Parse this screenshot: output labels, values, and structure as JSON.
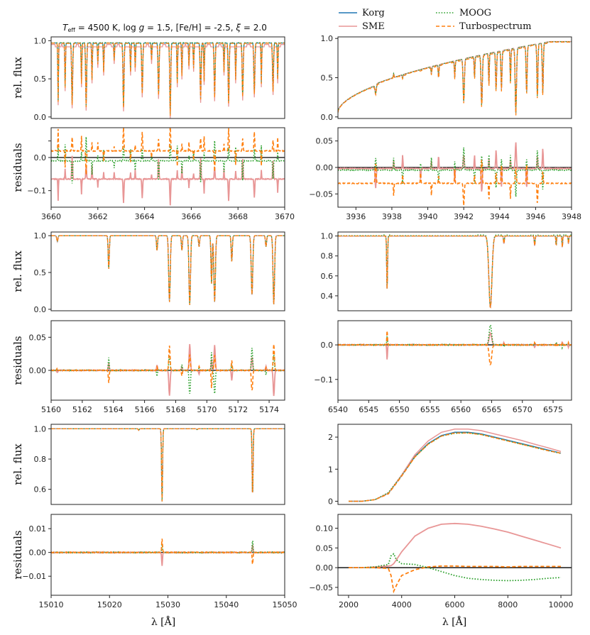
{
  "figure": {
    "title": "T_eff = 4500 K, log g = 1.5, [Fe/H] = -2.5, ξ = 2.0",
    "title_parts": {
      "teff": "= 4500 K, log ",
      "logg": " = 1.5, [Fe/H] = -2.5, ",
      "xi": " = 2.0"
    },
    "legend": [
      {
        "label": "Korg",
        "color": "#1f77b4",
        "style": "solid"
      },
      {
        "label": "SME",
        "color": "#e89696",
        "style": "solid"
      },
      {
        "label": "MOOG",
        "color": "#2ca02c",
        "style": "dotted"
      },
      {
        "label": "Turbospectrum",
        "color": "#ff7f0e",
        "style": "dashed"
      }
    ],
    "xlabel": "λ [Å]",
    "ylabel_flux": "rel. flux",
    "ylabel_resid": "residuals"
  },
  "chart_data": [
    {
      "type": "line",
      "id": "flux-3660",
      "xlim": [
        3660,
        3670
      ],
      "ylim": [
        -0.02,
        1.05
      ],
      "yticks": [
        0,
        0.5,
        1
      ],
      "ytick_labels": [
        "0.0",
        "0.5",
        "1.0"
      ],
      "ylabel": "rel. flux",
      "continuum": 0.97,
      "lines": [
        [
          3660.3,
          0.22,
          0.02
        ],
        [
          3660.6,
          0.4,
          0.02
        ],
        [
          3660.9,
          0.18,
          0.03
        ],
        [
          3661.3,
          0.45,
          0.02
        ],
        [
          3661.5,
          0.15,
          0.03
        ],
        [
          3661.75,
          0.5,
          0.02
        ],
        [
          3662.0,
          0.7,
          0.02
        ],
        [
          3662.25,
          0.6,
          0.02
        ],
        [
          3662.7,
          0.75,
          0.02
        ],
        [
          3663.1,
          0.14,
          0.03
        ],
        [
          3663.4,
          0.6,
          0.02
        ],
        [
          3663.6,
          0.65,
          0.02
        ],
        [
          3663.9,
          0.32,
          0.03
        ],
        [
          3664.3,
          0.75,
          0.02
        ],
        [
          3664.6,
          0.3,
          0.03
        ],
        [
          3665.1,
          0.04,
          0.03
        ],
        [
          3665.4,
          0.45,
          0.02
        ],
        [
          3665.6,
          0.55,
          0.02
        ],
        [
          3665.9,
          0.68,
          0.02
        ],
        [
          3666.1,
          0.65,
          0.02
        ],
        [
          3666.4,
          0.25,
          0.03
        ],
        [
          3666.55,
          0.48,
          0.02
        ],
        [
          3667.0,
          0.27,
          0.03
        ],
        [
          3667.4,
          0.6,
          0.02
        ],
        [
          3667.6,
          0.2,
          0.03
        ],
        [
          3667.9,
          0.5,
          0.02
        ],
        [
          3668.2,
          0.28,
          0.03
        ],
        [
          3668.7,
          0.32,
          0.03
        ],
        [
          3669.0,
          0.45,
          0.02
        ],
        [
          3669.5,
          0.35,
          0.03
        ],
        [
          3669.7,
          0.5,
          0.02
        ]
      ],
      "series": [
        {
          "name": "Korg",
          "offset": 0
        },
        {
          "name": "SME",
          "offset": -0.1
        },
        {
          "name": "MOOG",
          "offset": 0.01
        },
        {
          "name": "Turbospectrum",
          "offset": -0.01
        }
      ]
    },
    {
      "type": "line",
      "id": "resid-3660",
      "xlim": [
        3660,
        3670
      ],
      "ylim": [
        -0.15,
        0.09
      ],
      "yticks": [
        -0.1,
        0,
        0.05
      ],
      "ytick_labels": [
        "−0.1",
        "0.0",
        ""
      ],
      "ylabel": "residuals",
      "xticks": [
        3660,
        3662,
        3664,
        3666,
        3668,
        3670
      ],
      "series": [
        {
          "name": "SME",
          "baseline": -0.065,
          "min": -0.15
        },
        {
          "name": "MOOG",
          "baseline": -0.01
        },
        {
          "name": "Turbospectrum",
          "baseline": 0.02
        }
      ]
    },
    {
      "type": "line",
      "id": "flux-3935",
      "xlim": [
        3935,
        3948
      ],
      "ylim": [
        -0.02,
        1.02
      ],
      "yticks": [
        0,
        0.5,
        1
      ],
      "ytick_labels": [
        "0.0",
        "0.5",
        "1.0"
      ],
      "continuum_start": 0.08,
      "continuum_end": 0.96,
      "lines": [
        [
          3937.1,
          0.3,
          0.05
        ],
        [
          3938.1,
          0.55,
          0.03
        ],
        [
          3938.6,
          0.5,
          0.03
        ],
        [
          3939.6,
          0.6,
          0.03
        ],
        [
          3940.2,
          0.55,
          0.03
        ],
        [
          3940.6,
          0.5,
          0.03
        ],
        [
          3941.5,
          0.5,
          0.03
        ],
        [
          3942.0,
          0.2,
          0.05
        ],
        [
          3942.6,
          0.5,
          0.03
        ],
        [
          3943.0,
          0.15,
          0.05
        ],
        [
          3943.4,
          0.4,
          0.03
        ],
        [
          3943.8,
          0.35,
          0.04
        ],
        [
          3944.1,
          0.35,
          0.04
        ],
        [
          3944.6,
          0.45,
          0.03
        ],
        [
          3944.9,
          0.05,
          0.05
        ],
        [
          3945.5,
          0.3,
          0.04
        ],
        [
          3946.1,
          0.25,
          0.04
        ],
        [
          3946.4,
          0.3,
          0.04
        ]
      ],
      "series": [
        {
          "name": "Korg",
          "offset": 0
        },
        {
          "name": "SME",
          "offset": 0.005
        },
        {
          "name": "MOOG",
          "offset": 0
        },
        {
          "name": "Turbospectrum",
          "offset": -0.03
        }
      ]
    },
    {
      "type": "line",
      "id": "resid-3935",
      "xlim": [
        3935,
        3948
      ],
      "ylim": [
        -0.075,
        0.075
      ],
      "yticks": [
        -0.05,
        0,
        0.05
      ],
      "ytick_labels": [
        "−0.05",
        "0.00",
        "0.05"
      ],
      "xticks": [
        3936,
        3938,
        3940,
        3942,
        3944,
        3946,
        3948
      ],
      "series": [
        {
          "name": "SME",
          "baseline": -0.002,
          "max": 0.055
        },
        {
          "name": "MOOG",
          "baseline": -0.005
        },
        {
          "name": "Turbospectrum",
          "baseline": -0.03
        }
      ]
    },
    {
      "type": "line",
      "id": "flux-5160",
      "xlim": [
        5160,
        5175
      ],
      "ylim": [
        -0.02,
        1.05
      ],
      "yticks": [
        0,
        0.5,
        1
      ],
      "ytick_labels": [
        "0.0",
        "0.5",
        "1.0"
      ],
      "continuum": 1.0,
      "lines": [
        [
          5160.4,
          0.92,
          0.05
        ],
        [
          5163.7,
          0.55,
          0.05
        ],
        [
          5166.8,
          0.8,
          0.05
        ],
        [
          5167.6,
          0.1,
          0.07
        ],
        [
          5168.4,
          0.8,
          0.05
        ],
        [
          5168.9,
          0.06,
          0.07
        ],
        [
          5169.5,
          0.85,
          0.05
        ],
        [
          5170.3,
          0.35,
          0.05
        ],
        [
          5170.5,
          0.1,
          0.07
        ],
        [
          5171.6,
          0.65,
          0.05
        ],
        [
          5172.9,
          0.2,
          0.07
        ],
        [
          5173.8,
          0.85,
          0.05
        ],
        [
          5174.3,
          0.07,
          0.07
        ]
      ],
      "series": [
        {
          "name": "Korg",
          "offset": 0
        },
        {
          "name": "SME",
          "offset": 0
        },
        {
          "name": "MOOG",
          "offset": 0
        },
        {
          "name": "Turbospectrum",
          "offset": 0
        }
      ]
    },
    {
      "type": "line",
      "id": "resid-5160",
      "xlim": [
        5160,
        5175
      ],
      "ylim": [
        -0.045,
        0.075
      ],
      "yticks": [
        0,
        0.05
      ],
      "ytick_labels": [
        "0.00",
        "0.05"
      ],
      "xticks": [
        5160,
        5162,
        5164,
        5166,
        5168,
        5170,
        5172,
        5174
      ],
      "series": [
        {
          "name": "SME",
          "baseline": 0.0,
          "max": 0.07
        },
        {
          "name": "MOOG",
          "baseline": 0.0,
          "min": -0.035
        },
        {
          "name": "Turbospectrum",
          "baseline": 0.0,
          "min": -0.03
        }
      ]
    },
    {
      "type": "line",
      "id": "flux-6540",
      "xlim": [
        6540,
        6578
      ],
      "ylim": [
        0.25,
        1.04
      ],
      "yticks": [
        0.4,
        0.6,
        0.8,
        1.0
      ],
      "ytick_labels": [
        "0.4",
        "0.6",
        "0.8",
        "1.0"
      ],
      "continuum": 1.0,
      "lines": [
        [
          6548.0,
          0.45,
          0.1
        ],
        [
          6564.8,
          0.28,
          0.35
        ],
        [
          6567.0,
          0.92,
          0.1
        ],
        [
          6572.0,
          0.9,
          0.1
        ],
        [
          6575.5,
          0.9,
          0.08
        ],
        [
          6576.5,
          0.88,
          0.08
        ],
        [
          6577.5,
          0.92,
          0.08
        ]
      ],
      "series": [
        {
          "name": "Korg",
          "offset": 0
        },
        {
          "name": "SME",
          "offset": 0
        },
        {
          "name": "MOOG",
          "offset": 0.02
        },
        {
          "name": "Turbospectrum",
          "offset": 0
        }
      ]
    },
    {
      "type": "line",
      "id": "resid-6540",
      "xlim": [
        6540,
        6578
      ],
      "ylim": [
        -0.16,
        0.07
      ],
      "yticks": [
        -0.1,
        0
      ],
      "ytick_labels": [
        "−0.1",
        "0.0"
      ],
      "xticks": [
        6540,
        6545,
        6550,
        6555,
        6560,
        6565,
        6570,
        6575
      ],
      "series": [
        {
          "name": "SME",
          "baseline": 0.0,
          "min": -0.15
        },
        {
          "name": "MOOG",
          "baseline": 0.0,
          "max": 0.06
        },
        {
          "name": "Turbospectrum",
          "baseline": 0.0,
          "min": -0.15
        }
      ]
    },
    {
      "type": "line",
      "id": "flux-15010",
      "xlim": [
        15010,
        15050
      ],
      "ylim": [
        0.5,
        1.03
      ],
      "yticks": [
        0.6,
        0.8,
        1.0
      ],
      "ytick_labels": [
        "0.6",
        "0.8",
        "1.0"
      ],
      "continuum": 1.0,
      "lines": [
        [
          15029.0,
          0.52,
          0.12
        ],
        [
          15044.5,
          0.55,
          0.12
        ],
        [
          15025.0,
          0.99,
          0.1
        ],
        [
          15035.0,
          0.995,
          0.1
        ]
      ],
      "series": [
        {
          "name": "Korg",
          "offset": 0
        },
        {
          "name": "SME",
          "offset": 0
        },
        {
          "name": "MOOG",
          "offset": 0
        },
        {
          "name": "Turbospectrum",
          "offset": 0
        }
      ]
    },
    {
      "type": "line",
      "id": "resid-15010",
      "xlim": [
        15010,
        15050
      ],
      "ylim": [
        -0.018,
        0.016
      ],
      "yticks": [
        -0.01,
        0,
        0.01
      ],
      "ytick_labels": [
        "−0.01",
        "0.00",
        "0.01"
      ],
      "xticks": [
        15010,
        15020,
        15030,
        15040,
        15050
      ],
      "series": [
        {
          "name": "SME",
          "baseline": 0.0,
          "max": 0.014
        },
        {
          "name": "MOOG",
          "baseline": 0.0,
          "min": -0.016
        },
        {
          "name": "Turbospectrum",
          "baseline": 0.0,
          "min": -0.008
        }
      ]
    },
    {
      "type": "line",
      "id": "flux-sed",
      "xlim": [
        1600,
        10400
      ],
      "ylim": [
        -0.1,
        2.4
      ],
      "yticks": [
        0,
        1,
        2
      ],
      "ytick_labels": [
        "0",
        "1",
        "2"
      ],
      "sed": {
        "x": [
          2000,
          2500,
          3000,
          3500,
          4000,
          4500,
          5000,
          5500,
          6000,
          6500,
          7000,
          7500,
          8000,
          8500,
          9000,
          9500,
          10000
        ],
        "Korg": [
          0.0,
          0.0,
          0.05,
          0.25,
          0.8,
          1.4,
          1.8,
          2.05,
          2.15,
          2.15,
          2.1,
          2.0,
          1.9,
          1.8,
          1.7,
          1.6,
          1.5
        ],
        "SME": [
          0.0,
          0.0,
          0.05,
          0.25,
          0.82,
          1.45,
          1.88,
          2.15,
          2.25,
          2.25,
          2.2,
          2.1,
          2.0,
          1.9,
          1.78,
          1.67,
          1.55
        ],
        "MOOG": [
          0.0,
          0.0,
          0.05,
          0.27,
          0.8,
          1.38,
          1.78,
          2.03,
          2.12,
          2.13,
          2.08,
          1.98,
          1.88,
          1.78,
          1.68,
          1.58,
          1.49
        ],
        "Turbospectrum": [
          0.0,
          0.0,
          0.05,
          0.23,
          0.78,
          1.38,
          1.78,
          2.03,
          2.13,
          2.13,
          2.08,
          1.98,
          1.88,
          1.78,
          1.68,
          1.58,
          1.5
        ]
      }
    },
    {
      "type": "line",
      "id": "resid-sed",
      "xlim": [
        1600,
        10400
      ],
      "ylim": [
        -0.07,
        0.135
      ],
      "yticks": [
        -0.05,
        0,
        0.05,
        0.1
      ],
      "ytick_labels": [
        "−0.05",
        "0.00",
        "0.05",
        "0.10"
      ],
      "xticks": [
        2000,
        4000,
        6000,
        8000,
        10000
      ],
      "sed": {
        "x": [
          2000,
          2500,
          3000,
          3500,
          3600,
          3700,
          3800,
          4000,
          4500,
          5000,
          5500,
          6000,
          6500,
          7000,
          7500,
          8000,
          8500,
          9000,
          9500,
          10000
        ],
        "SME": [
          0,
          0,
          0.002,
          0.004,
          0.005,
          0.01,
          0.02,
          0.04,
          0.08,
          0.1,
          0.11,
          0.112,
          0.11,
          0.105,
          0.098,
          0.09,
          0.08,
          0.07,
          0.06,
          0.05
        ],
        "MOOG": [
          0,
          0,
          0.002,
          0.008,
          0.03,
          0.035,
          0.02,
          0.01,
          0.008,
          0.0,
          -0.01,
          -0.02,
          -0.027,
          -0.03,
          -0.032,
          -0.033,
          -0.032,
          -0.03,
          -0.027,
          -0.025
        ],
        "Turbospectrum": [
          0,
          0,
          0.0,
          -0.002,
          -0.02,
          -0.06,
          -0.045,
          -0.02,
          -0.005,
          0.002,
          0.004,
          0.004,
          0.003,
          0.003,
          0.003,
          0.002,
          0.003,
          0.003,
          0.003,
          0.003
        ]
      }
    }
  ]
}
